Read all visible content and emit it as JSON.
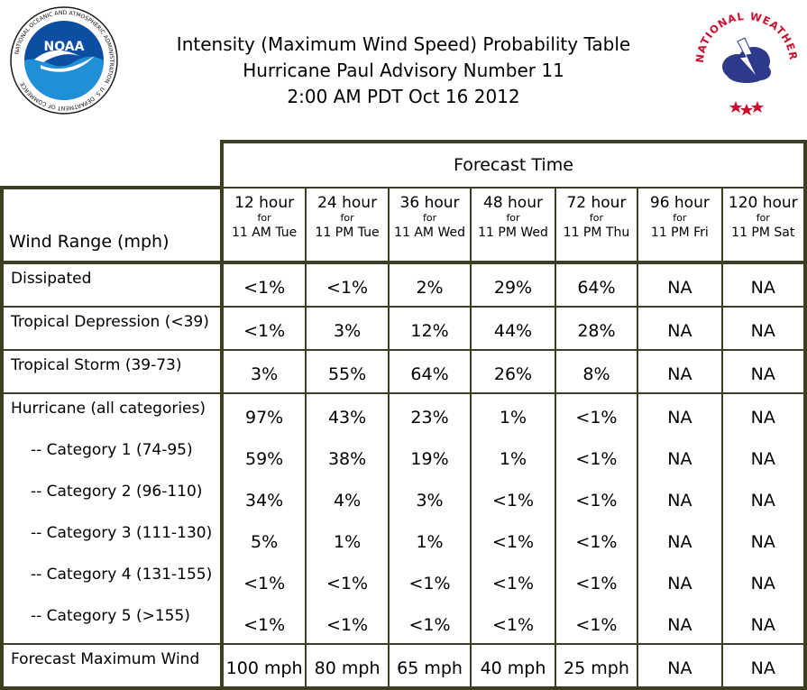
{
  "header": {
    "title_line1": "Intensity (Maximum Wind Speed) Probability Table",
    "title_line2": "Hurricane Paul Advisory Number 11",
    "title_line3": "2:00 AM PDT Oct 16 2012",
    "noaa_logo_text": "NOAA",
    "noaa_ring_text": "NATIONAL OCEANIC AND ATMOSPHERIC ADMINISTRATION · U.S. DEPARTMENT OF COMMERCE",
    "nws_ring_text": "NATIONAL WEATHER SERVICE"
  },
  "table": {
    "group_header": "Forecast Time",
    "row_header": "Wind Range (mph)",
    "for_word": "for",
    "columns": [
      {
        "hour": "12 hour",
        "when": "11 AM Tue"
      },
      {
        "hour": "24 hour",
        "when": "11 PM Tue"
      },
      {
        "hour": "36 hour",
        "when": "11 AM Wed"
      },
      {
        "hour": "48 hour",
        "when": "11 PM Wed"
      },
      {
        "hour": "72 hour",
        "when": "11 PM Thu"
      },
      {
        "hour": "96 hour",
        "when": "11 PM Fri"
      },
      {
        "hour": "120 hour",
        "when": "11 PM Sat"
      }
    ],
    "rows": [
      {
        "label": "Dissipated",
        "values": [
          "<1%",
          "<1%",
          "2%",
          "29%",
          "64%",
          "NA",
          "NA"
        ]
      },
      {
        "label": "Tropical Depression (<39)",
        "values": [
          "<1%",
          "3%",
          "12%",
          "44%",
          "28%",
          "NA",
          "NA"
        ]
      },
      {
        "label": "Tropical Storm (39-73)",
        "values": [
          "3%",
          "55%",
          "64%",
          "26%",
          "8%",
          "NA",
          "NA"
        ]
      },
      {
        "label": "Hurricane (all categories)",
        "values": [
          "97%",
          "43%",
          "23%",
          "1%",
          "<1%",
          "NA",
          "NA"
        ]
      },
      {
        "label": "-- Category 1 (74-95)",
        "values": [
          "59%",
          "38%",
          "19%",
          "1%",
          "<1%",
          "NA",
          "NA"
        ]
      },
      {
        "label": "-- Category 2 (96-110)",
        "values": [
          "34%",
          "4%",
          "3%",
          "<1%",
          "<1%",
          "NA",
          "NA"
        ]
      },
      {
        "label": "-- Category 3 (111-130)",
        "values": [
          "5%",
          "1%",
          "1%",
          "<1%",
          "<1%",
          "NA",
          "NA"
        ]
      },
      {
        "label": "-- Category 4 (131-155)",
        "values": [
          "<1%",
          "<1%",
          "<1%",
          "<1%",
          "<1%",
          "NA",
          "NA"
        ]
      },
      {
        "label": "-- Category 5 (>155)",
        "values": [
          "<1%",
          "<1%",
          "<1%",
          "<1%",
          "<1%",
          "NA",
          "NA"
        ]
      },
      {
        "label": "Forecast Maximum Wind",
        "values": [
          "100 mph",
          "80 mph",
          "65 mph",
          "40 mph",
          "25 mph",
          "NA",
          "NA"
        ]
      }
    ]
  },
  "colors": {
    "border": "#3d3d22",
    "noaa_blue": "#1f5aa8",
    "nws_red": "#c8102e"
  }
}
